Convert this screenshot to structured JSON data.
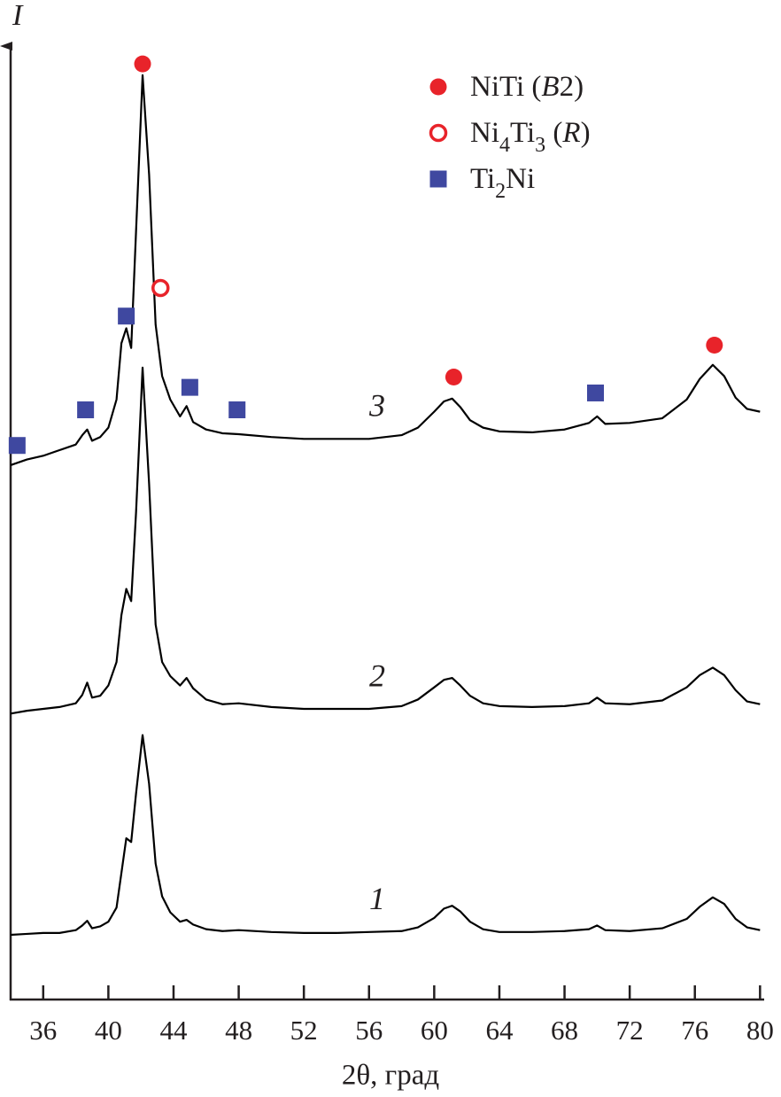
{
  "chart_data": {
    "type": "line",
    "x_label": "2θ, град",
    "y_label": "I",
    "xlim": [
      34,
      80.2
    ],
    "ylim": [
      0,
      100
    ],
    "xticks": [
      36,
      40,
      44,
      48,
      52,
      56,
      60,
      64,
      68,
      72,
      76,
      80
    ],
    "legend": "top-right",
    "x": [
      34,
      35,
      36,
      37,
      38,
      38.4,
      38.7,
      39,
      39.5,
      40,
      40.5,
      40.8,
      41.1,
      41.4,
      41.7,
      42.1,
      42.5,
      42.9,
      43.3,
      43.8,
      44.4,
      44.8,
      45.2,
      46,
      47,
      48,
      50,
      52,
      54,
      56,
      58,
      59,
      60,
      60.6,
      61.1,
      61.6,
      62.2,
      63,
      64,
      66,
      68,
      69.5,
      70,
      70.5,
      72,
      74,
      75.5,
      76.3,
      77.1,
      77.8,
      78.5,
      79.2,
      80
    ],
    "series": [
      {
        "name": "1",
        "color": "#000000",
        "values": [
          6.9,
          7.0,
          7.1,
          7.1,
          7.4,
          7.9,
          8.4,
          7.6,
          7.8,
          8.3,
          9.8,
          13.5,
          17.2,
          16.8,
          22,
          28.2,
          23,
          14.5,
          11,
          9.3,
          8.3,
          8.5,
          8.0,
          7.5,
          7.3,
          7.4,
          7.2,
          7.1,
          7.1,
          7.2,
          7.3,
          7.7,
          8.7,
          9.7,
          10.0,
          9.4,
          8.3,
          7.5,
          7.2,
          7.2,
          7.3,
          7.5,
          7.9,
          7.4,
          7.3,
          7.6,
          8.6,
          9.9,
          10.9,
          10.2,
          8.6,
          7.7,
          7.4
        ]
      },
      {
        "name": "2",
        "color": "#000000",
        "values": [
          30.5,
          30.8,
          31.0,
          31.2,
          31.6,
          32.5,
          33.8,
          32.2,
          32.4,
          33.5,
          36,
          41,
          43.8,
          42.5,
          52,
          67.4,
          55,
          40,
          36,
          34.5,
          33.5,
          34.3,
          33.2,
          32,
          31.5,
          31.6,
          31.2,
          31.0,
          31.0,
          31.0,
          31.3,
          32,
          33.3,
          34.1,
          34.3,
          33.5,
          32.4,
          31.6,
          31.3,
          31.2,
          31.3,
          31.6,
          32.2,
          31.6,
          31.5,
          31.9,
          33.3,
          34.6,
          35.4,
          34.6,
          33,
          31.8,
          31.5
        ]
      },
      {
        "name": "3",
        "color": "#000000",
        "values": [
          57.0,
          57.6,
          58.0,
          58.6,
          59.2,
          60.2,
          60.8,
          59.6,
          60.0,
          61.0,
          64,
          70,
          71.6,
          69.5,
          82,
          98.6,
          88,
          72,
          66.5,
          64,
          62.2,
          63.3,
          61.6,
          60.8,
          60.4,
          60.3,
          60.0,
          59.8,
          59.8,
          59.8,
          60.2,
          61,
          62.7,
          63.8,
          64.1,
          63.2,
          61.8,
          61.0,
          60.6,
          60.5,
          60.8,
          61.5,
          62.2,
          61.4,
          61.5,
          62.0,
          64.0,
          66.2,
          67.7,
          66.5,
          64.2,
          63.0,
          62.7
        ]
      }
    ],
    "phases": [
      {
        "name": "NiTi (B2)",
        "color": "#e8232a",
        "marker": "filled-circle",
        "x": [
          42.1,
          61.2,
          77.2
        ],
        "y": [
          99.8,
          66.4,
          69.8
        ]
      },
      {
        "name": "Ni4Ti3 (R)",
        "color": "#e8232a",
        "marker": "open-circle",
        "x": [
          43.2
        ],
        "y": [
          75.9
        ]
      },
      {
        "name": "Ti2Ni",
        "color": "#3f48a0",
        "marker": "square",
        "x": [
          34.4,
          38.6,
          41.1,
          45.0,
          47.9,
          69.9
        ],
        "y": [
          59.1,
          62.9,
          72.9,
          65.3,
          62.9,
          64.7
        ]
      }
    ]
  }
}
